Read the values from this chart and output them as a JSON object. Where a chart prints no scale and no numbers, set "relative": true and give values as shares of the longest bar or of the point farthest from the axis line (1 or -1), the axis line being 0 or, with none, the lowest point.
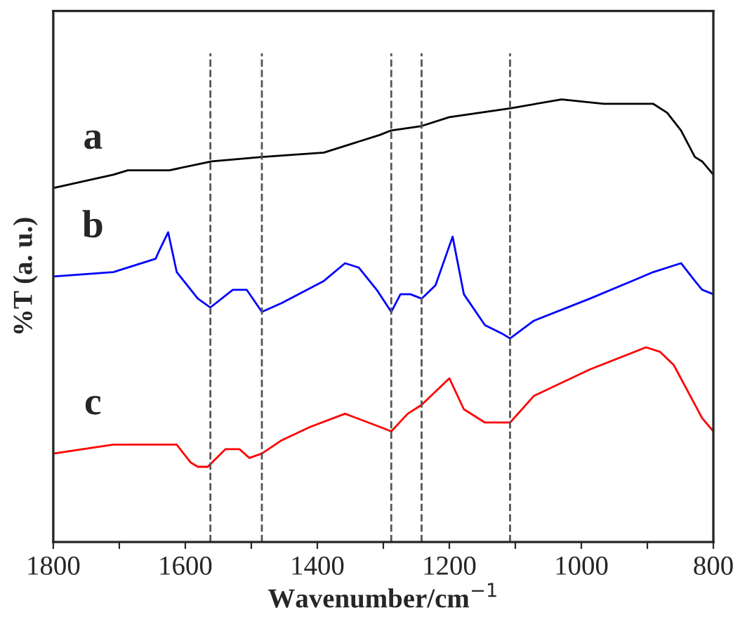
{
  "chart_data": {
    "type": "line",
    "relative": true,
    "xlabel": "Wavenumber/cm$^{−1}$",
    "ylabel": "%T (a. u.)",
    "xlim": [
      1800,
      800
    ],
    "xticks": [
      1800,
      {
        "value": 1700,
        "label": null
      },
      1600,
      {
        "value": 1500,
        "label": null
      },
      1400,
      {
        "value": 1300,
        "label": null
      },
      1200,
      {
        "value": 1100,
        "label": null
      },
      1000,
      {
        "value": 900,
        "label": null
      },
      800
    ],
    "tick_labels": "x",
    "grid": false,
    "legend": false,
    "line_style": "solid",
    "marker": "none",
    "series": [
      {
        "name": "a",
        "color": "#000000",
        "x": [
          1800,
          1709,
          1687,
          1624,
          1560,
          1484,
          1390,
          1305,
          1288,
          1242,
          1200,
          1108,
          1030,
          966,
          923,
          891,
          870,
          849,
          828,
          817,
          800
        ],
        "values": [
          0.8,
          0.83,
          0.84,
          0.84,
          0.86,
          0.87,
          0.88,
          0.92,
          0.93,
          0.94,
          0.96,
          0.98,
          1.0,
          0.99,
          0.99,
          0.99,
          0.97,
          0.93,
          0.87,
          0.86,
          0.83
        ]
      },
      {
        "name": "b",
        "color": "#0000ff",
        "x": [
          1800,
          1709,
          1645,
          1639,
          1626,
          1613,
          1581,
          1562,
          1528,
          1507,
          1484,
          1454,
          1390,
          1358,
          1337,
          1310,
          1288,
          1274,
          1259,
          1242,
          1221,
          1195,
          1178,
          1146,
          1119,
          1108,
          1072,
          987,
          923,
          891,
          849,
          828,
          817,
          800
        ],
        "values": [
          0.6,
          0.61,
          0.64,
          0.66,
          0.7,
          0.61,
          0.55,
          0.53,
          0.57,
          0.57,
          0.52,
          0.54,
          0.59,
          0.63,
          0.62,
          0.57,
          0.52,
          0.56,
          0.56,
          0.55,
          0.58,
          0.69,
          0.56,
          0.49,
          0.47,
          0.46,
          0.5,
          0.55,
          0.59,
          0.61,
          0.63,
          0.59,
          0.57,
          0.56
        ]
      },
      {
        "name": "c",
        "color": "#ff0000",
        "x": [
          1800,
          1709,
          1624,
          1613,
          1592,
          1581,
          1566,
          1539,
          1518,
          1503,
          1484,
          1454,
          1411,
          1358,
          1305,
          1288,
          1263,
          1242,
          1200,
          1178,
          1146,
          1108,
          1072,
          987,
          902,
          881,
          860,
          817,
          800
        ],
        "values": [
          0.2,
          0.22,
          0.22,
          0.22,
          0.18,
          0.17,
          0.17,
          0.21,
          0.21,
          0.19,
          0.2,
          0.23,
          0.26,
          0.29,
          0.26,
          0.25,
          0.29,
          0.31,
          0.37,
          0.3,
          0.27,
          0.27,
          0.33,
          0.39,
          0.44,
          0.43,
          0.4,
          0.28,
          0.25
        ]
      }
    ],
    "ref_lines": [
      {
        "axis": "x",
        "value": 1562,
        "color": "#555555",
        "line_style": "dashed"
      },
      {
        "axis": "x",
        "value": 1484,
        "color": "#555555",
        "line_style": "dashed"
      },
      {
        "axis": "x",
        "value": 1288,
        "color": "#555555",
        "line_style": "dashed"
      },
      {
        "axis": "x",
        "value": 1242,
        "color": "#555555",
        "line_style": "dashed"
      },
      {
        "axis": "x",
        "value": 1108,
        "color": "#555555",
        "line_style": "dashed"
      }
    ]
  }
}
